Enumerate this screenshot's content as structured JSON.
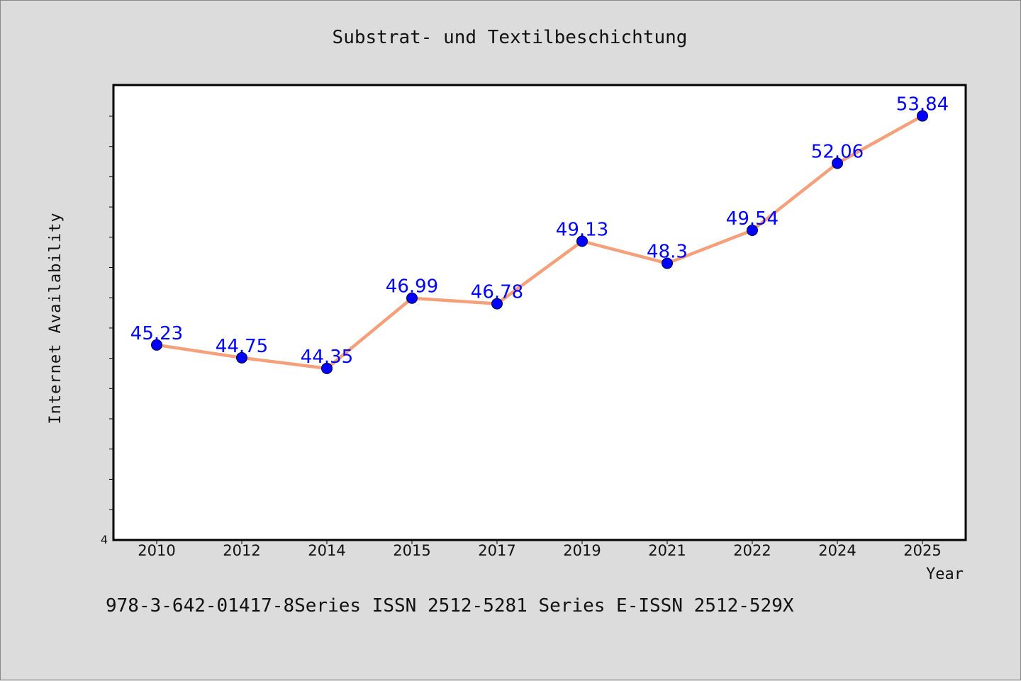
{
  "chart_data": {
    "type": "line",
    "title": "Substrat- und Textilbeschichtung",
    "xlabel": "Year",
    "ylabel": "Internet Availability",
    "categories": [
      "2010",
      "2012",
      "2014",
      "2015",
      "2017",
      "2019",
      "2021",
      "2022",
      "2024",
      "2025"
    ],
    "series": [
      {
        "values": [
          45.23,
          44.75,
          44.35,
          46.99,
          46.78,
          49.13,
          48.3,
          49.54,
          52.06,
          53.84
        ],
        "labels": [
          "45.23",
          "44.75",
          "44.35",
          "46.99",
          "46.78",
          "49.13",
          "48.3",
          "49.54",
          "52.06",
          "53.84"
        ],
        "line_color": "#f4a07a",
        "marker_color": "#0000ff"
      }
    ],
    "ylim": [
      37.9,
      55.0
    ],
    "yticks_label": "4",
    "grid": false,
    "label_color": "#0000ff"
  },
  "footer": {
    "text": "978-3-642-01417-8Series ISSN 2512-5281 Series E-ISSN 2512-529X"
  }
}
